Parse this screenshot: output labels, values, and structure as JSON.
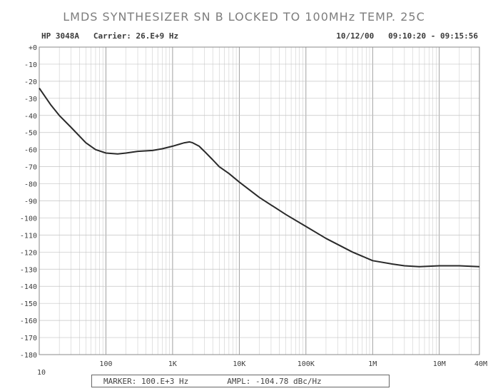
{
  "header": {
    "instrument": "HP 3048A",
    "carrier_label": "Carrier:",
    "carrier_value": "26.E+9 Hz",
    "date": "10/12/00",
    "time_range": "09:10:20 - 09:15:56"
  },
  "marker": {
    "marker_label": "MARKER:",
    "marker_value": "100.E+3 Hz",
    "ampl_label": "AMPL:",
    "ampl_value": "-104.78 dBc/Hz"
  },
  "colors": {
    "trace": "#2a2a2a",
    "grid": "#c4c4c4",
    "axis": "#8a8a8a",
    "title": "#7d7d7d"
  },
  "chart_data": {
    "type": "line",
    "title": "LMDS SYNTHESIZER SN B LOCKED TO 100MHz TEMP. 25C",
    "xlabel": "",
    "ylabel": "",
    "xscale": "log",
    "xlim": [
      10,
      40000000
    ],
    "ylim": [
      -180,
      0
    ],
    "grid": true,
    "x_tick_values": [
      10,
      100,
      1000,
      10000,
      100000,
      1000000,
      10000000,
      40000000
    ],
    "x_tick_labels": [
      "10",
      "100",
      "1K",
      "10K",
      "100K",
      "1M",
      "10M",
      "40M"
    ],
    "y_tick_values": [
      0,
      -10,
      -20,
      -30,
      -40,
      -50,
      -60,
      -70,
      -80,
      -90,
      -100,
      -110,
      -120,
      -130,
      -140,
      -150,
      -160,
      -170,
      -180
    ],
    "y_tick_labels": [
      "+0",
      "-10",
      "-20",
      "-30",
      "-40",
      "-50",
      "-60",
      "-70",
      "-80",
      "-90",
      "-100",
      "-110",
      "-120",
      "-130",
      "-140",
      "-150",
      "-160",
      "-170",
      "-180"
    ],
    "series": [
      {
        "x": [
          10,
          15,
          20,
          30,
          50,
          70,
          100,
          150,
          200,
          300,
          500,
          700,
          1000,
          1500,
          1800,
          2000,
          2500,
          3000,
          4000,
          5000,
          7000,
          10000,
          20000,
          50000,
          100000,
          200000,
          500000,
          1000000,
          2000000,
          3000000,
          5000000,
          10000000,
          20000000,
          40000000
        ],
        "y": [
          -24,
          -34,
          -40,
          -47,
          -56,
          -60,
          -62,
          -62.5,
          -62,
          -61,
          -60.5,
          -59.5,
          -58,
          -56,
          -55.5,
          -56,
          -58,
          -61,
          -66,
          -70,
          -74,
          -79,
          -88,
          -98,
          -105,
          -112,
          -120,
          -125,
          -127,
          -128,
          -128.5,
          -128,
          -128,
          -128.5
        ]
      }
    ]
  }
}
